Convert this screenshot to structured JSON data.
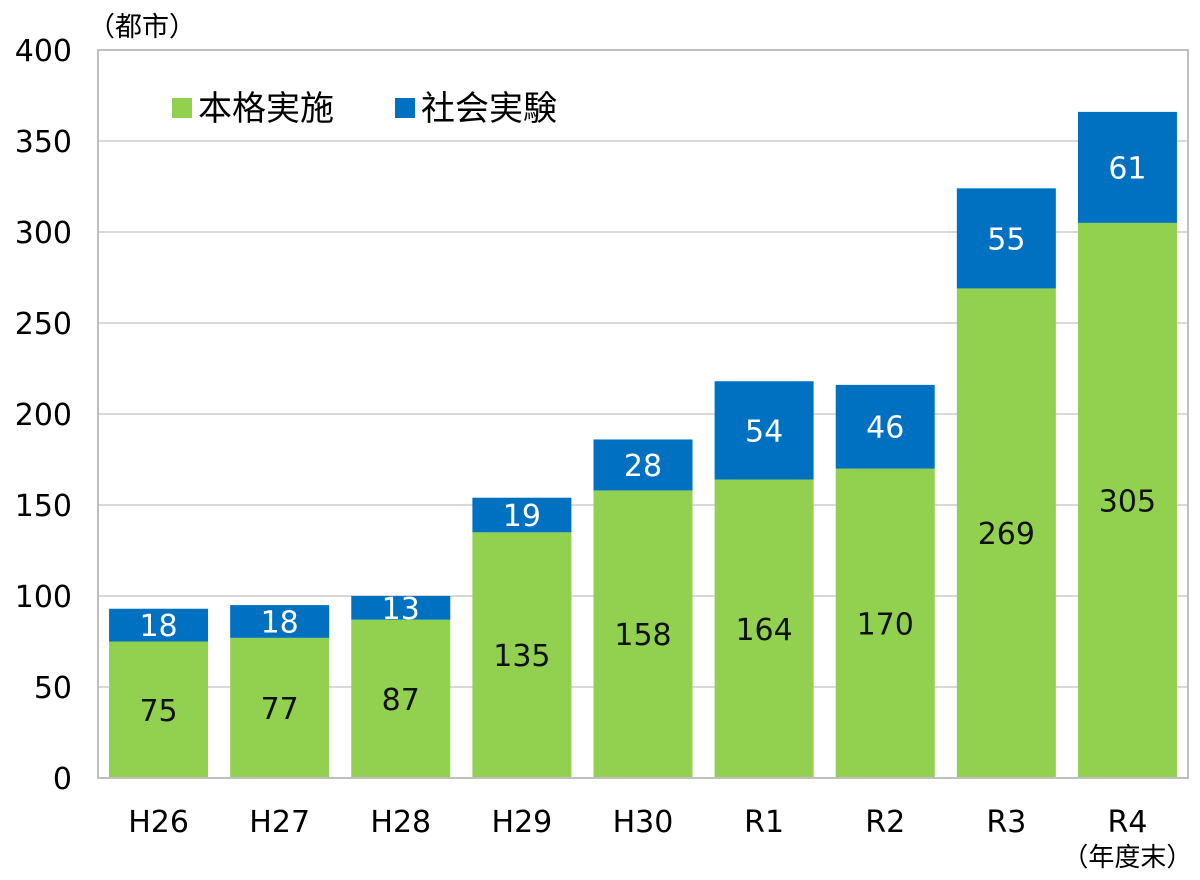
{
  "chart_data": {
    "type": "bar",
    "stacked": true,
    "unit_label": "（都市）",
    "categories": [
      "H26",
      "H27",
      "H28",
      "H29",
      "H30",
      "R1",
      "R2",
      "R3",
      "R4"
    ],
    "category_note": {
      "index": 8,
      "text": "（年度末）"
    },
    "series": [
      {
        "name": "本格実施",
        "color": "#92d050",
        "values": [
          75,
          77,
          87,
          135,
          158,
          164,
          170,
          269,
          305
        ]
      },
      {
        "name": "社会実験",
        "color": "#0070c0",
        "values": [
          18,
          18,
          13,
          19,
          28,
          54,
          46,
          55,
          61
        ]
      }
    ],
    "ylim": [
      0,
      400
    ],
    "yticks": [
      0,
      50,
      100,
      150,
      200,
      250,
      300,
      350,
      400
    ],
    "grid": true,
    "legend_position": "top-left"
  }
}
